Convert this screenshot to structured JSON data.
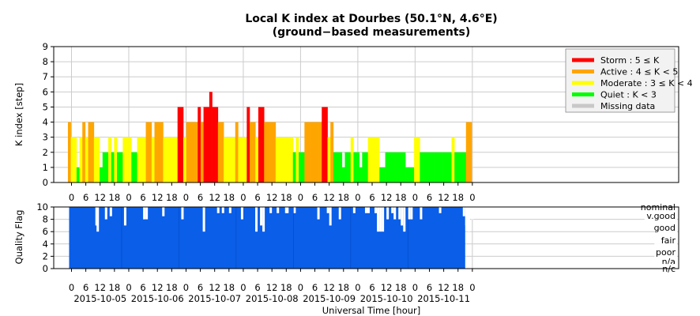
{
  "chart_data": [
    {
      "type": "bar",
      "title": "Local K index at Dourbes (50.1°N, 4.6°E)",
      "subtitle": "(ground−based measurements)",
      "ylabel": "K index [step]",
      "ylim": [
        0,
        9
      ],
      "yticks": [
        "0",
        "1",
        "2",
        "3",
        "4",
        "5",
        "6",
        "7",
        "8",
        "9"
      ],
      "grid": true,
      "bar_interval_hours": 3,
      "x_start": "2015-10-04 22:30",
      "x_end": "2015-10-12 00:00",
      "legend": {
        "placement": "top-right",
        "entries": [
          {
            "label": "Storm : 5 ≤ K",
            "color": "#ff0000"
          },
          {
            "label": "Active : 4 ≤ K < 5",
            "color": "#ffa500"
          },
          {
            "label": "Moderate : 3 ≤ K < 4",
            "color": "#ffff00"
          },
          {
            "label": "Quiet : K < 3",
            "color": "#00ff00"
          },
          {
            "label": "Missing data",
            "color": "#c8c8c8"
          }
        ]
      },
      "kp_values": [
        4,
        3,
        3,
        1,
        3,
        4,
        3,
        4,
        4,
        3,
        3,
        1,
        2,
        2,
        3,
        2,
        3,
        2,
        2,
        3,
        3,
        3,
        2,
        2,
        3,
        3,
        3,
        4,
        4,
        3,
        4,
        4,
        4,
        3,
        3,
        3,
        3,
        3,
        5,
        5,
        3,
        4,
        4,
        4,
        4,
        5,
        4,
        5,
        5,
        6,
        5,
        5,
        4,
        4,
        3,
        3,
        3,
        3,
        4,
        3,
        3,
        3,
        5,
        4,
        4,
        3,
        5,
        5,
        4,
        4,
        4,
        4,
        3,
        3,
        3,
        3,
        3,
        3,
        2,
        3,
        2,
        2,
        4,
        4,
        4,
        4,
        4,
        4,
        5,
        5,
        3,
        4,
        2,
        2,
        2,
        1,
        2,
        2,
        3,
        2,
        2,
        1,
        2,
        2,
        3,
        3,
        3,
        3,
        1,
        1,
        2,
        2,
        2,
        2,
        2,
        2,
        2,
        1,
        1,
        1,
        3,
        3,
        2,
        2,
        2,
        2,
        2,
        2,
        2,
        2,
        2,
        2,
        2,
        3,
        2,
        2,
        2,
        2,
        4,
        4
      ]
    },
    {
      "type": "bar",
      "ylabel": "Quality Flag",
      "xlabel": "Universal Time [hour]",
      "ylim": [
        0,
        10
      ],
      "yticks": [
        "0",
        "2",
        "4",
        "6",
        "8",
        "10"
      ],
      "quality_levels": [
        "nominal",
        "v.good",
        "good",
        "fair",
        "poor",
        "n/a",
        "n/c"
      ],
      "x_tick_hours": [
        "0",
        "6",
        "12",
        "18",
        "0",
        "6",
        "12",
        "18",
        "0",
        "6",
        "12",
        "18",
        "0",
        "6",
        "12",
        "18",
        "0",
        "6",
        "12",
        "18",
        "0",
        "6",
        "12",
        "18",
        "0",
        "6",
        "12",
        "18",
        "0"
      ],
      "dates": [
        "2015-10-05",
        "2015-10-06",
        "2015-10-07",
        "2015-10-08",
        "2015-10-09",
        "2015-10-10",
        "2015-10-11"
      ],
      "bar_color": "#0a5ee8",
      "dips": [
        {
          "hour": 10.0,
          "value": 7.0
        },
        {
          "hour": 10.5,
          "value": 6.0
        },
        {
          "hour": 14.0,
          "value": 8.0
        },
        {
          "hour": 16.0,
          "value": 8.5
        },
        {
          "hour": 22.0,
          "value": 7.0
        },
        {
          "hour": 30.0,
          "value": 8.0
        },
        {
          "hour": 31.0,
          "value": 8.0
        },
        {
          "hour": 38.0,
          "value": 8.5
        },
        {
          "hour": 46.0,
          "value": 8.0
        },
        {
          "hour": 55.0,
          "value": 6.0
        },
        {
          "hour": 61.0,
          "value": 9.0
        },
        {
          "hour": 63.0,
          "value": 9.0
        },
        {
          "hour": 66.0,
          "value": 9.0
        },
        {
          "hour": 71.0,
          "value": 8.0
        },
        {
          "hour": 77.0,
          "value": 6.0
        },
        {
          "hour": 79.0,
          "value": 7.0
        },
        {
          "hour": 80.0,
          "value": 6.0
        },
        {
          "hour": 83.0,
          "value": 9.0
        },
        {
          "hour": 86.0,
          "value": 9.0
        },
        {
          "hour": 89.5,
          "value": 9.0
        },
        {
          "hour": 90.0,
          "value": 9.0
        },
        {
          "hour": 93.0,
          "value": 9.0
        },
        {
          "hour": 103.0,
          "value": 8.0
        },
        {
          "hour": 107.0,
          "value": 9.0
        },
        {
          "hour": 108.0,
          "value": 7.0
        },
        {
          "hour": 112.0,
          "value": 8.0
        },
        {
          "hour": 118.0,
          "value": 9.0
        },
        {
          "hour": 123.0,
          "value": 9.0
        },
        {
          "hour": 124.0,
          "value": 9.0
        },
        {
          "hour": 127.0,
          "value": 9.0
        },
        {
          "hour": 128.0,
          "value": 6.0
        },
        {
          "hour": 129.0,
          "value": 6.0
        },
        {
          "hour": 130.0,
          "value": 6.0
        },
        {
          "hour": 132.0,
          "value": 8.0
        },
        {
          "hour": 134.0,
          "value": 9.0
        },
        {
          "hour": 135.0,
          "value": 8.0
        },
        {
          "hour": 137.0,
          "value": 8.0
        },
        {
          "hour": 138.0,
          "value": 7.0
        },
        {
          "hour": 139.0,
          "value": 6.0
        },
        {
          "hour": 141.0,
          "value": 8.0
        },
        {
          "hour": 142.0,
          "value": 8.0
        },
        {
          "hour": 146.0,
          "value": 8.0
        },
        {
          "hour": 154.0,
          "value": 9.0
        },
        {
          "hour": 164.0,
          "value": 8.5
        },
        {
          "hour": 165.0,
          "value": 7.0
        },
        {
          "hour": 166.0,
          "value": 6.0
        },
        {
          "hour": 167.5,
          "value": 8.0
        }
      ]
    }
  ]
}
